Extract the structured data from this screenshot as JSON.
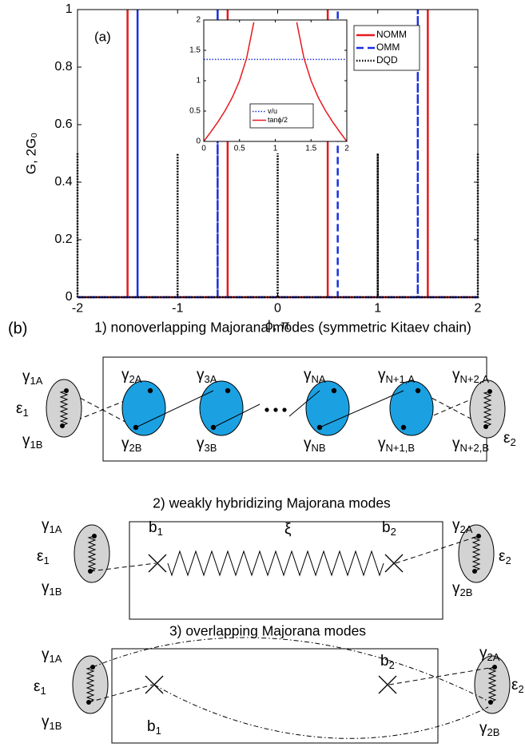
{
  "chart_data": [
    {
      "type": "line",
      "panel_label": "(a)",
      "xlabel": "ϕ, π",
      "ylabel": "G, 2G₀",
      "xlim": [
        -2,
        2
      ],
      "ylim": [
        0,
        1
      ],
      "xticks": [
        -2,
        -1,
        0,
        1,
        2
      ],
      "yticks": [
        0,
        0.2,
        0.4,
        0.6,
        0.8,
        1
      ],
      "legend": "upper right",
      "series": [
        {
          "name": "NOMM",
          "color": "#e8191e",
          "dash": "solid",
          "x": [
            -2,
            -1.5,
            -1.5,
            -1.5,
            -0.5,
            -0.5,
            -0.5,
            0.5,
            0.5,
            0.5,
            1.5,
            1.5,
            1.5,
            2
          ],
          "values": [
            0,
            0,
            1,
            0,
            0,
            1,
            0,
            0,
            1,
            0,
            0,
            1,
            0,
            0
          ]
        },
        {
          "name": "OMM",
          "color": "#1a2fe0",
          "dash": "dashed",
          "x": [
            -2,
            -1.4,
            -1.4,
            -1.4,
            -0.6,
            -0.6,
            -0.6,
            0.6,
            0.6,
            0.6,
            1.4,
            1.4,
            1.4,
            2
          ],
          "values": [
            0,
            0,
            1,
            0,
            0,
            1,
            0,
            0,
            1,
            0,
            0,
            1,
            0,
            0
          ]
        },
        {
          "name": "DQD",
          "color": "#000000",
          "dash": "dotted",
          "x": [
            -2,
            -2,
            -1,
            -1,
            -1,
            0,
            0,
            0,
            1,
            1,
            1,
            2,
            2
          ],
          "values": [
            0.5,
            0,
            0,
            0.5,
            0,
            0,
            0.5,
            0,
            0,
            0.5,
            0,
            0,
            0.5
          ]
        }
      ]
    },
    {
      "type": "line",
      "xlim": [
        0,
        2
      ],
      "ylim": [
        0,
        2
      ],
      "xticks": [
        0,
        0.5,
        1,
        1.5,
        2
      ],
      "yticks": [
        0,
        0.5,
        1,
        1.5,
        2
      ],
      "legend": "lower center",
      "series": [
        {
          "name": "v/u",
          "color": "#1a2fe0",
          "dash": "dotted",
          "x": [
            0,
            2
          ],
          "values": [
            1.35,
            1.35
          ]
        },
        {
          "name": "tanϕ/2",
          "color": "#e8191e",
          "dash": "solid",
          "x": [
            0,
            0.1,
            0.2,
            0.3,
            0.4,
            0.5,
            0.6,
            0.7,
            1,
            1.3,
            1.4,
            1.5,
            1.6,
            1.7,
            1.8,
            1.9,
            2
          ],
          "values": [
            0,
            0.158,
            0.325,
            0.51,
            0.727,
            1,
            1.376,
            1.963,
            null,
            1.963,
            1.376,
            1,
            0.727,
            0.51,
            0.325,
            0.158,
            0
          ]
        }
      ]
    }
  ],
  "diagram": {
    "label": "(b)",
    "panels": [
      {
        "title": "1) nonoverlapping Majorana modes (symmetric Kitaev chain)",
        "labels": [
          {
            "s": "γ",
            "sub": "1A"
          },
          {
            "s": "ε",
            "sub": "1"
          },
          {
            "s": "γ",
            "sub": "1B"
          },
          {
            "s": "γ",
            "sub": "2A"
          },
          {
            "s": "γ",
            "sub": "2B"
          },
          {
            "s": "γ",
            "sub": "3A"
          },
          {
            "s": "γ",
            "sub": "3B"
          },
          {
            "s": "γ",
            "sub": "NA"
          },
          {
            "s": "γ",
            "sub": "NB"
          },
          {
            "s": "γ",
            "sub": "N+1,A"
          },
          {
            "s": "γ",
            "sub": "N+1,B"
          },
          {
            "s": "γ",
            "sub": "N+2,A"
          },
          {
            "s": "γ",
            "sub": "N+2,B"
          },
          {
            "s": "ε",
            "sub": "2"
          }
        ]
      },
      {
        "title": "2) weakly hybridizing Majorana modes",
        "labels": [
          {
            "s": "γ",
            "sub": "1A"
          },
          {
            "s": "ε",
            "sub": "1"
          },
          {
            "s": "γ",
            "sub": "1B"
          },
          {
            "s": "b",
            "sub": "1"
          },
          {
            "s": "ξ"
          },
          {
            "s": "b",
            "sub": "2"
          },
          {
            "s": "γ",
            "sub": "2A"
          },
          {
            "s": "ε",
            "sub": "2"
          },
          {
            "s": "γ",
            "sub": "2B"
          }
        ]
      },
      {
        "title": "3) overlapping Majorana modes",
        "labels": [
          {
            "s": "γ",
            "sub": "1A"
          },
          {
            "s": "ε",
            "sub": "1"
          },
          {
            "s": "γ",
            "sub": "1B"
          },
          {
            "s": "b",
            "sub": "2"
          },
          {
            "s": "b",
            "sub": "1"
          },
          {
            "s": "γ",
            "sub": "2A"
          },
          {
            "s": "ε",
            "sub": "2"
          },
          {
            "s": "γ",
            "sub": "2B"
          }
        ]
      }
    ]
  }
}
